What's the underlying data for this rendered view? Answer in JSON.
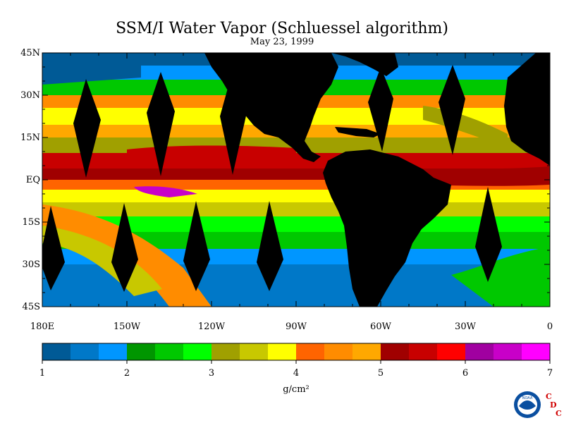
{
  "map": {
    "title": "SSM/I Water Vapor (Schluessel algorithm)",
    "date": "May 23, 1999",
    "lat_labels": [
      "45N",
      "30N",
      "15N",
      "EQ",
      "15S",
      "30S",
      "45S"
    ],
    "lat_values": [
      45,
      30,
      15,
      0,
      -15,
      -30,
      -45
    ],
    "lon_labels": [
      "180E",
      "150W",
      "120W",
      "90W",
      "60W",
      "30W",
      "0"
    ],
    "lon_values": [
      -180,
      -150,
      -120,
      -90,
      -60,
      -30,
      0
    ],
    "extent": {
      "lon_min": -180,
      "lon_max": 0,
      "lat_min": -45,
      "lat_max": 45
    }
  },
  "colorbar": {
    "unit": "g/cm²",
    "min": 1,
    "max": 7,
    "tick_labels": [
      "1",
      "2",
      "3",
      "4",
      "5",
      "6",
      "7"
    ],
    "colors": [
      "#005a96",
      "#0078c8",
      "#0096ff",
      "#009600",
      "#00c800",
      "#00ff00",
      "#a0a000",
      "#c8c800",
      "#ffff00",
      "#ff6400",
      "#ff8c00",
      "#ffa800",
      "#a00000",
      "#c80000",
      "#ff0000",
      "#a000a0",
      "#c800c8",
      "#ff00ff"
    ]
  },
  "logo": {
    "noaa_text": "NOAA",
    "cdc_letters": [
      "C",
      "D",
      "C"
    ]
  }
}
